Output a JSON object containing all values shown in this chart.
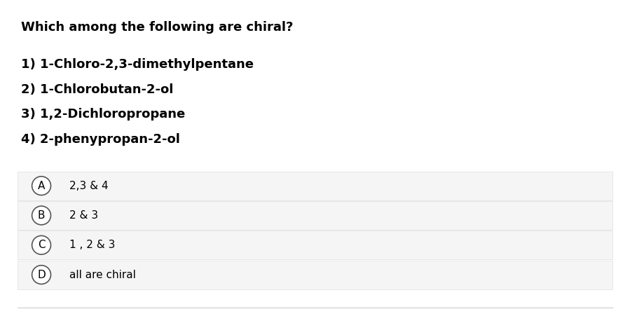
{
  "background_color": "#ffffff",
  "question": "Which among the following are chiral?",
  "items": [
    "1) 1-Chloro-2,3-dimethylpentane",
    "2) 1-Chlorobutan-2-ol",
    "3) 1,2-Dichloropropane",
    "4) 2-phenypropan-2-ol"
  ],
  "options": [
    {
      "label": "A",
      "text": "2,3 & 4"
    },
    {
      "label": "B",
      "text": "2 & 3"
    },
    {
      "label": "C",
      "text": "1 , 2 & 3"
    },
    {
      "label": "D",
      "text": "all are chiral"
    }
  ],
  "option_bg_color": "#f5f5f5",
  "option_border_color": "#e0e0e0",
  "text_color": "#000000",
  "circle_edge_color": "#555555",
  "question_fontsize": 13,
  "item_fontsize": 13,
  "option_fontsize": 11,
  "label_fontsize": 11,
  "separator_color": "#cccccc"
}
